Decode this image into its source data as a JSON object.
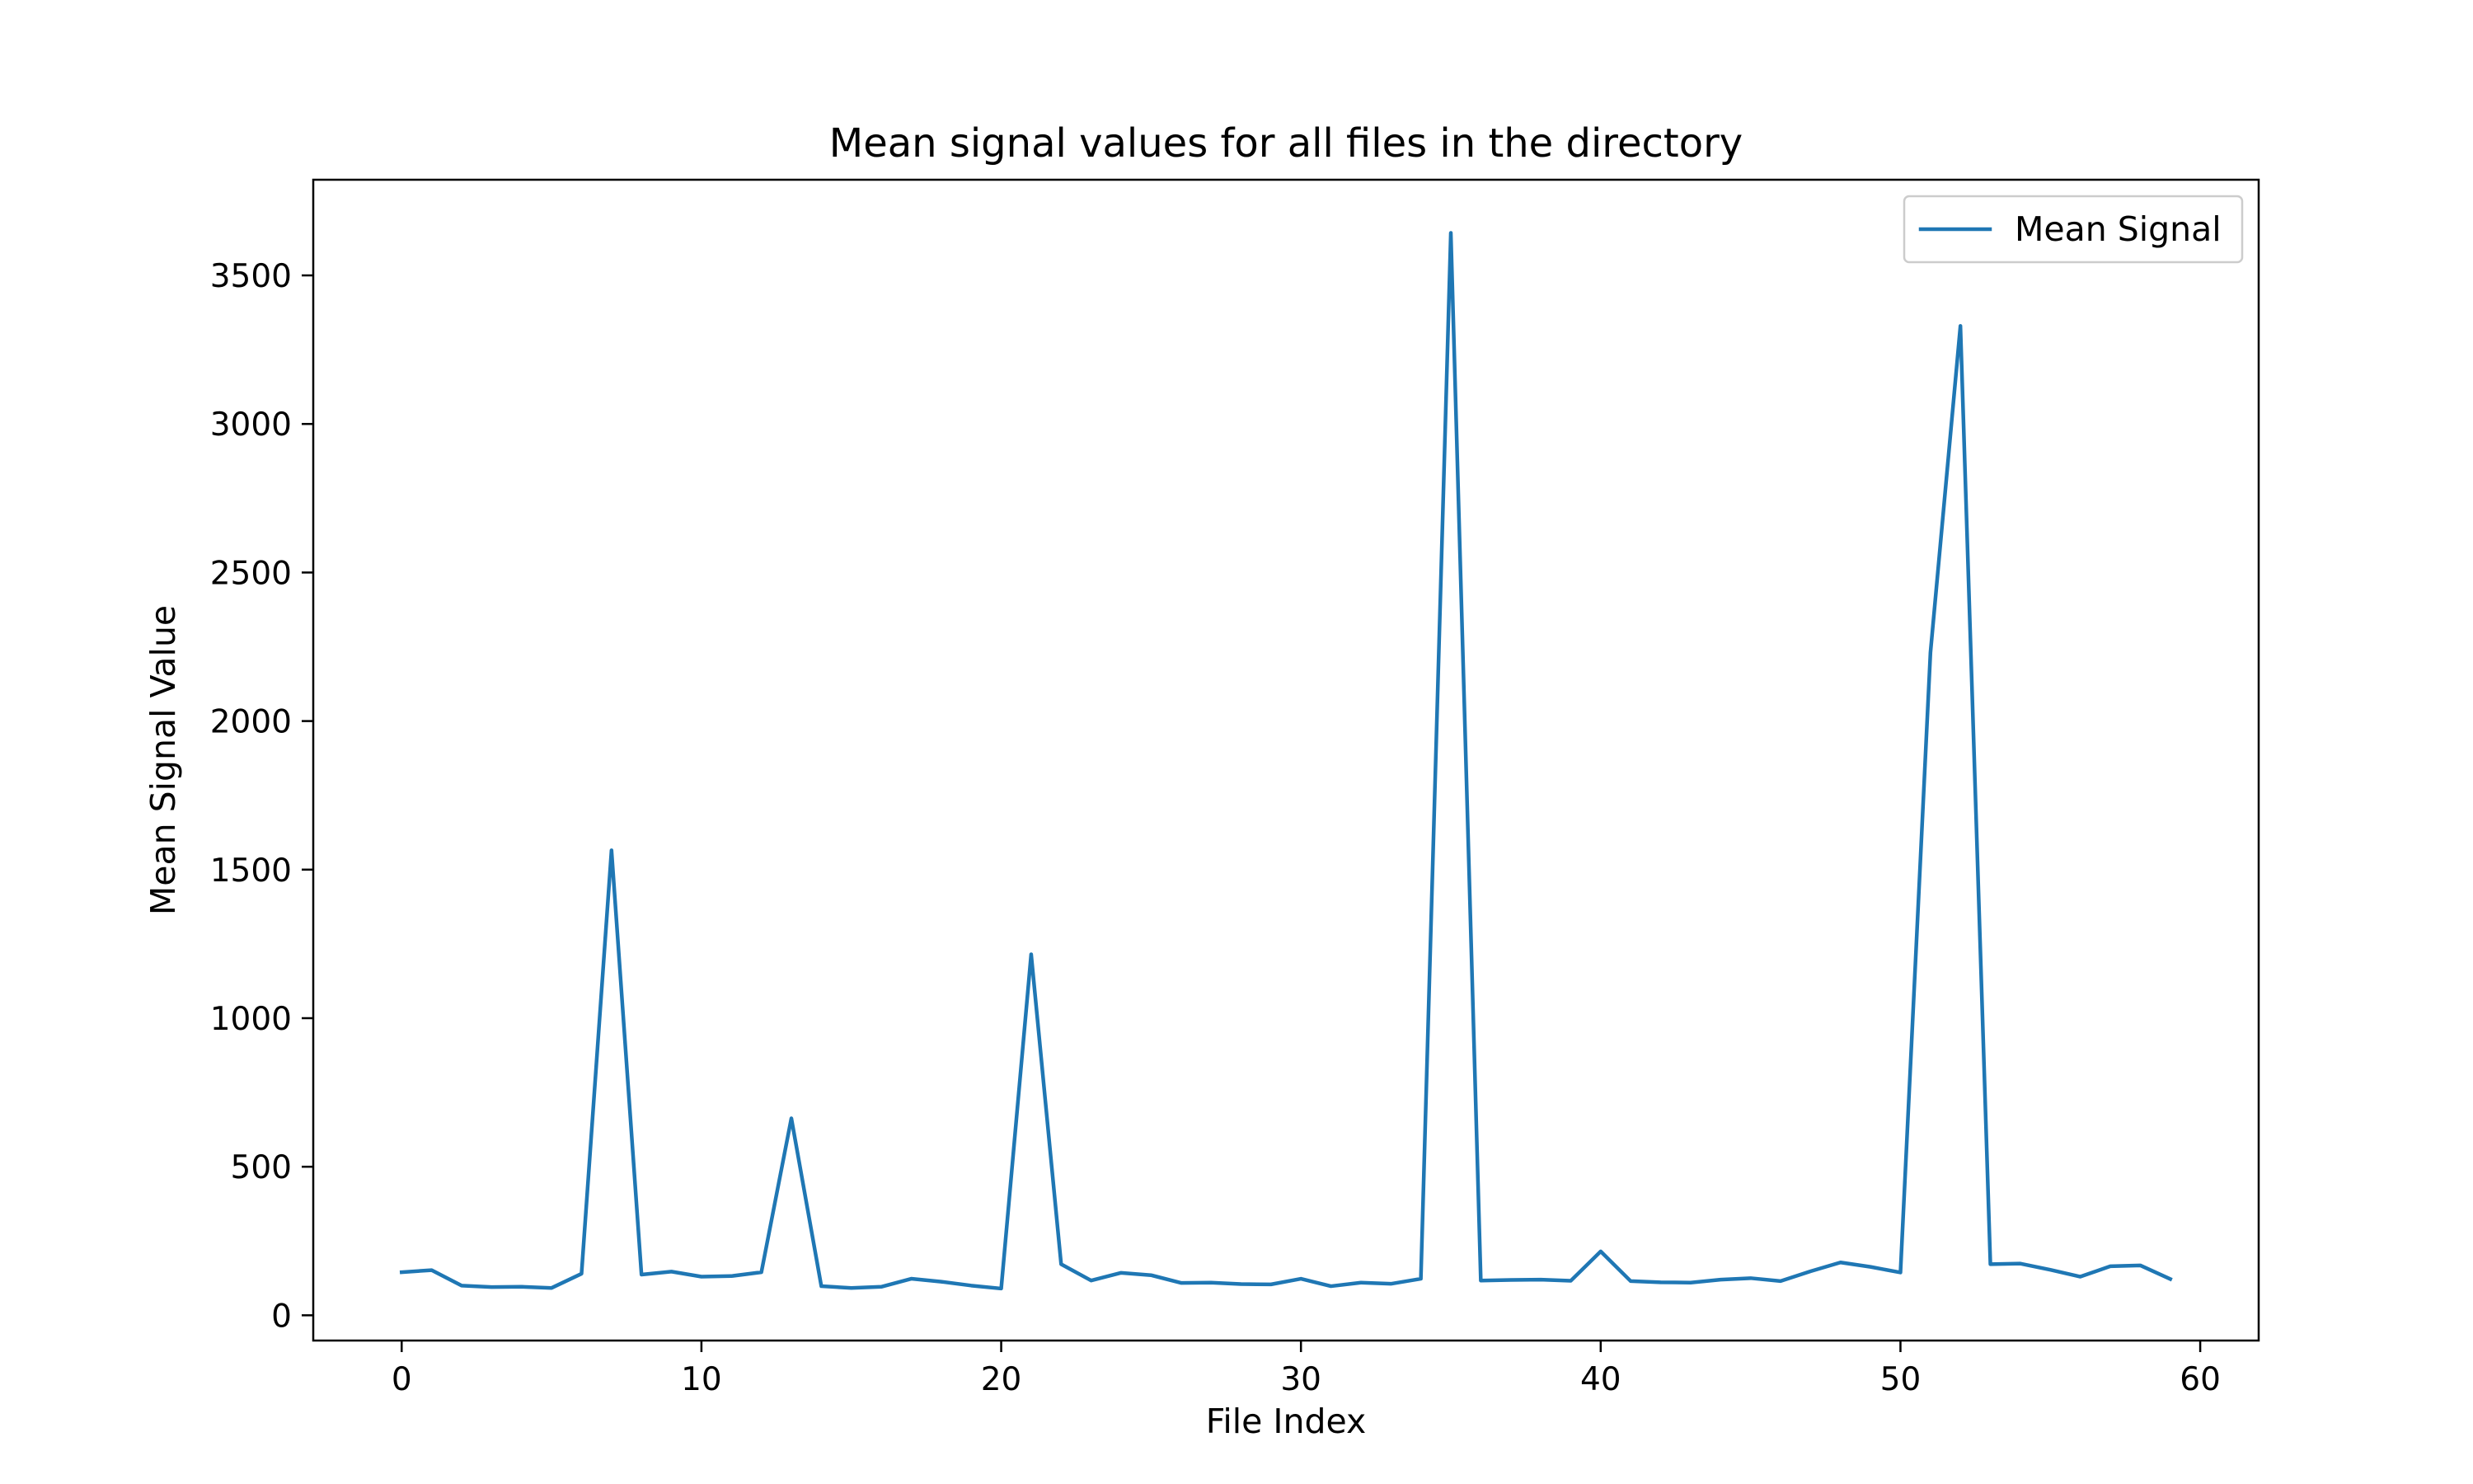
{
  "chart_data": {
    "type": "line",
    "title": "Mean signal values for all files in the directory",
    "xlabel": "File Index",
    "ylabel": "Mean Signal Value",
    "xlim": [
      -2.95,
      61.95
    ],
    "ylim": [
      -85,
      3822
    ],
    "xticks": [
      0,
      10,
      20,
      30,
      40,
      50,
      60
    ],
    "yticks": [
      0,
      500,
      1000,
      1500,
      2000,
      2500,
      3000,
      3500
    ],
    "grid": false,
    "legend_position": "top-right",
    "series": [
      {
        "name": "Mean Signal",
        "color": "#1f77b4",
        "x": [
          0,
          1,
          2,
          3,
          4,
          5,
          6,
          7,
          8,
          9,
          10,
          11,
          12,
          13,
          14,
          15,
          16,
          17,
          18,
          19,
          20,
          21,
          22,
          23,
          24,
          25,
          26,
          27,
          28,
          29,
          30,
          31,
          32,
          33,
          34,
          35,
          36,
          37,
          38,
          39,
          40,
          41,
          42,
          43,
          44,
          45,
          46,
          47,
          48,
          49,
          50,
          51,
          52,
          53,
          54,
          55,
          56,
          57,
          58,
          59
        ],
        "values": [
          145,
          152,
          100,
          95,
          96,
          92,
          140,
          1565,
          137,
          147,
          130,
          132,
          145,
          663,
          98,
          92,
          96,
          123,
          113,
          100,
          90,
          1215,
          172,
          117,
          143,
          135,
          109,
          110,
          105,
          104,
          123,
          98,
          110,
          106,
          123,
          3643,
          117,
          119,
          120,
          116,
          215,
          115,
          111,
          110,
          120,
          125,
          115,
          148,
          178,
          163,
          144,
          2230,
          3330,
          172,
          174,
          153,
          130,
          165,
          168,
          122
        ]
      }
    ]
  }
}
